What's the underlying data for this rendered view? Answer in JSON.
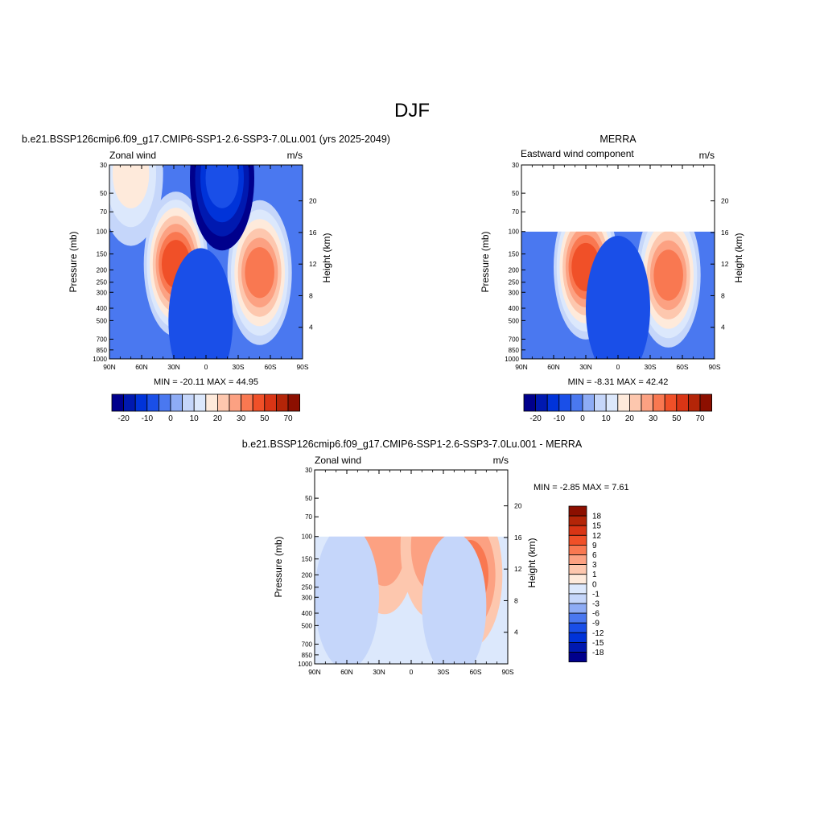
{
  "title": "DJF",
  "panels": [
    {
      "title": "b.e21.BSSP126cmip6.f09_g17.CMIP6-SSP1-2.6-SSP3-7.0Lu.001 (yrs 2025-2049)",
      "left_label": "Zonal wind",
      "right_label": "m/s",
      "stats": "MIN = -20.11  MAX =  44.95"
    },
    {
      "title": "MERRA",
      "left_label": "Eastward wind component",
      "right_label": "m/s",
      "stats": "MIN =  -8.31  MAX =  42.42"
    },
    {
      "title": "b.e21.BSSP126cmip6.f09_g17.CMIP6-SSP1-2.6-SSP3-7.0Lu.001 - MERRA",
      "left_label": "Zonal wind",
      "right_label": "m/s",
      "stats": "MIN =  -2.85  MAX =   7.61"
    }
  ],
  "axes": {
    "ylabel": "Pressure (mb)",
    "ylabel_right": "Height (km)",
    "xtick_labels": [
      "90N",
      "60N",
      "30N",
      "0",
      "30S",
      "60S",
      "90S"
    ],
    "ytick_labels": [
      "30",
      "50",
      "70",
      "100",
      "150",
      "200",
      "250",
      "300",
      "400",
      "500",
      "700",
      "850",
      "1000"
    ],
    "height_ticks": [
      "20",
      "16",
      "12",
      "8",
      "4"
    ]
  },
  "colorbars": {
    "horizontal_labels": [
      "-20",
      "-10",
      "0",
      "10",
      "20",
      "30",
      "50",
      "70"
    ],
    "vertical_labels": [
      "18",
      "15",
      "12",
      "9",
      "6",
      "3",
      "1",
      "0",
      "-1",
      "-3",
      "-6",
      "-9",
      "-12",
      "-15",
      "-18"
    ]
  },
  "colors": {
    "palette": [
      "#00008c",
      "#0019b0",
      "#0033d9",
      "#1a4fe8",
      "#4a78f0",
      "#8eacf5",
      "#c5d6fa",
      "#dce8fc",
      "#feeadb",
      "#fdc7ae",
      "#fca182",
      "#f97851",
      "#f05028",
      "#d93515",
      "#b42508",
      "#8c0f00"
    ]
  },
  "chart_data": [
    {
      "type": "heatmap",
      "title": "b.e21.BSSP126cmip6.f09_g17.CMIP6-SSP1-2.6-SSP3-7.0Lu.001 (yrs 2025-2049)",
      "xlabel": "",
      "ylabel": "Pressure (mb)",
      "xlim": [
        90,
        -90
      ],
      "ylim": [
        1000,
        30
      ],
      "yscale": "log",
      "min": -20.11,
      "max": 44.95,
      "contour_levels": [
        -20,
        -15,
        -10,
        -5,
        0,
        5,
        10,
        15,
        20,
        25,
        30,
        40,
        50,
        60,
        70
      ],
      "features": [
        {
          "lat": 28,
          "p": 180,
          "value": 40
        },
        {
          "lat": -50,
          "p": 210,
          "value": 34
        },
        {
          "lat": 70,
          "p": 35,
          "value": 18
        },
        {
          "lat": -15,
          "p": 38,
          "value": -20
        },
        {
          "lat": 5,
          "p": 500,
          "value": -8
        }
      ]
    },
    {
      "type": "heatmap",
      "title": "MERRA",
      "xlabel": "",
      "ylabel": "Pressure (mb)",
      "xlim": [
        90,
        -90
      ],
      "ylim": [
        1000,
        30
      ],
      "yscale": "log",
      "data_top_pressure": 100,
      "min": -8.31,
      "max": 42.42,
      "contour_levels": [
        -20,
        -15,
        -10,
        -5,
        0,
        5,
        10,
        15,
        20,
        25,
        30,
        40,
        50,
        60,
        70
      ],
      "features": [
        {
          "lat": 30,
          "p": 190,
          "value": 40
        },
        {
          "lat": -47,
          "p": 220,
          "value": 34
        },
        {
          "lat": 0,
          "p": 400,
          "value": -8
        }
      ]
    },
    {
      "type": "heatmap",
      "title": "b.e21.BSSP126cmip6.f09_g17.CMIP6-SSP1-2.6-SSP3-7.0Lu.001 - MERRA",
      "xlabel": "",
      "ylabel": "Pressure (mb)",
      "xlim": [
        90,
        -90
      ],
      "ylim": [
        1000,
        30
      ],
      "yscale": "log",
      "data_top_pressure": 100,
      "min": -2.85,
      "max": 7.61,
      "contour_levels": [
        -18,
        -15,
        -12,
        -9,
        -6,
        -3,
        -1,
        0,
        1,
        3,
        6,
        9,
        12,
        15,
        18
      ],
      "features": [
        {
          "lat": -55,
          "p": 200,
          "value": 7.5
        },
        {
          "lat": 25,
          "p": 110,
          "value": 5
        },
        {
          "lat": -20,
          "p": 120,
          "value": 4
        },
        {
          "lat": 60,
          "p": 300,
          "value": -2
        },
        {
          "lat": -40,
          "p": 350,
          "value": -2.5
        }
      ]
    }
  ]
}
